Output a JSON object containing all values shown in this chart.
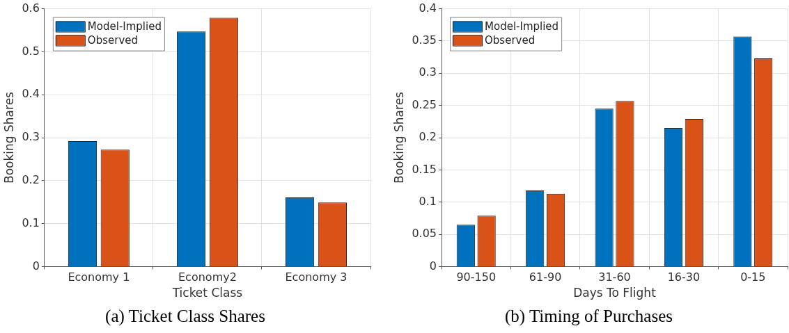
{
  "chart_data": [
    {
      "type": "bar",
      "title": "(a) Ticket Class Shares",
      "xlabel": "Ticket Class",
      "ylabel": "Booking Shares",
      "categories": [
        "Economy 1",
        "Economy2",
        "Economy 3"
      ],
      "series": [
        {
          "name": "Model-Implied",
          "color": "#0072bd",
          "values": [
            0.292,
            0.547,
            0.161
          ]
        },
        {
          "name": "Observed",
          "color": "#d95319",
          "values": [
            0.272,
            0.579,
            0.149
          ]
        }
      ],
      "ylim": [
        0,
        0.6
      ],
      "yticks": [
        0,
        0.1,
        0.2,
        0.3,
        0.4,
        0.5,
        0.6
      ],
      "grid": true,
      "legend": "top left"
    },
    {
      "type": "bar",
      "title": "(b) Timing of Purchases",
      "xlabel": "Days To Flight",
      "ylabel": "Booking Shares",
      "categories": [
        "90-150",
        "61-90",
        "31-60",
        "16-30",
        "0-15"
      ],
      "series": [
        {
          "name": "Model-Implied",
          "color": "#0072bd",
          "values": [
            0.065,
            0.118,
            0.245,
            0.215,
            0.357
          ]
        },
        {
          "name": "Observed",
          "color": "#d95319",
          "values": [
            0.079,
            0.113,
            0.257,
            0.229,
            0.323
          ]
        }
      ],
      "ylim": [
        0,
        0.4
      ],
      "yticks": [
        0,
        0.05,
        0.1,
        0.15,
        0.2,
        0.25,
        0.3,
        0.35,
        0.4
      ],
      "grid": true,
      "legend": "top left"
    }
  ]
}
